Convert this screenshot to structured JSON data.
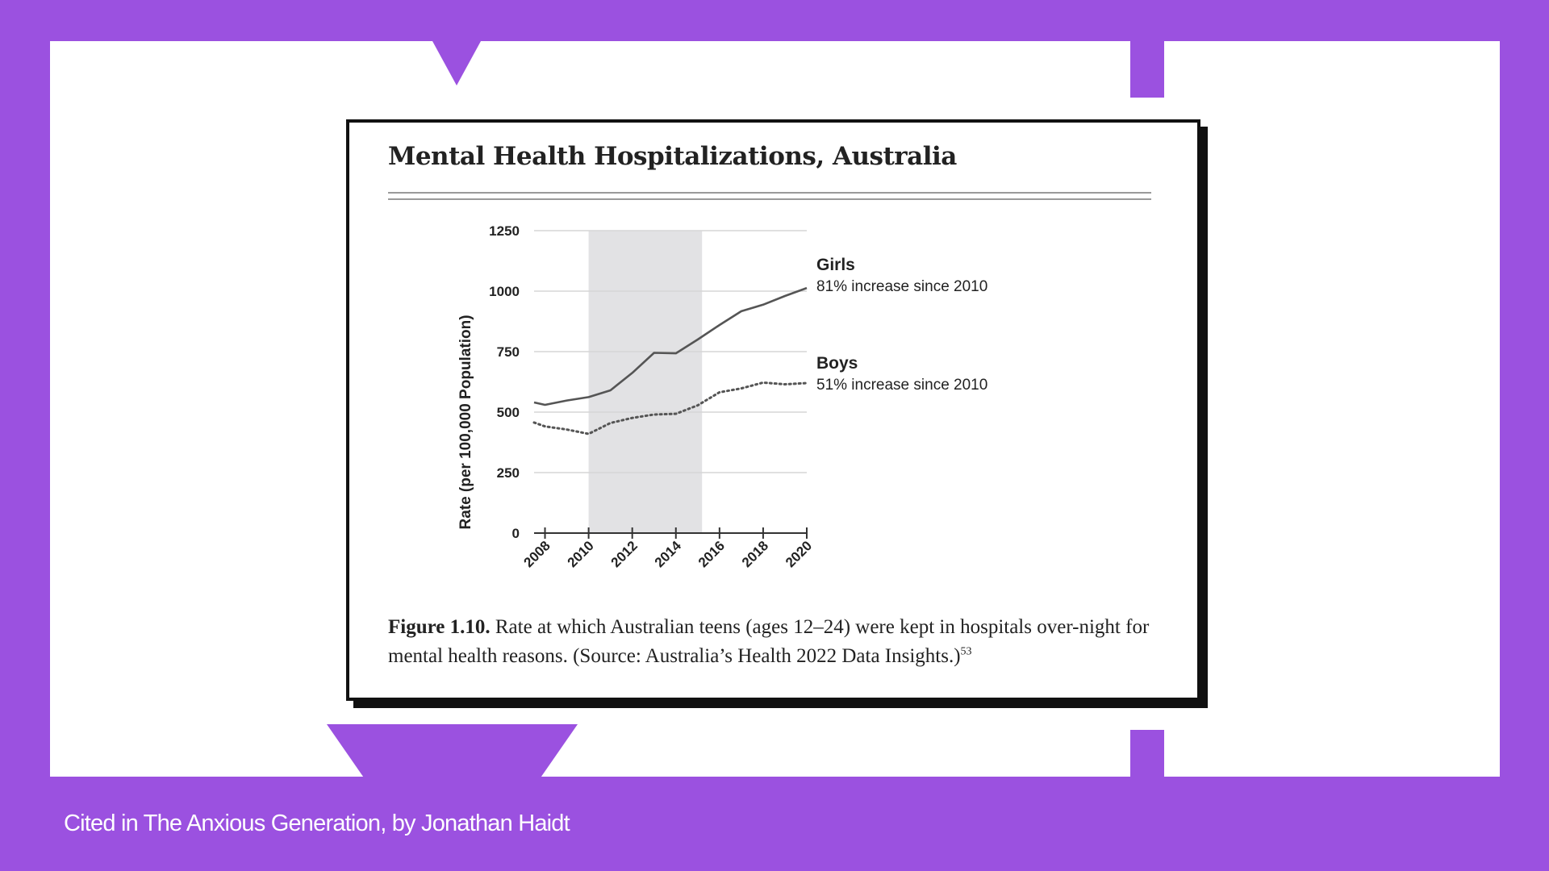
{
  "footer": {
    "citation": "Cited in The Anxious Generation, by Jonathan Haidt"
  },
  "card": {
    "title": "Mental Health Hospitalizations, Australia",
    "caption_label": "Figure 1.10.",
    "caption_text": " Rate at which Australian teens (ages 12–24) were kept in hospitals over-night for mental health reasons. (Source: Australia’s Health 2022 Data Insights.)",
    "caption_ref": "53"
  },
  "colors": {
    "background": "#9b51e0",
    "line": "#555555",
    "shade": "#e2e2e4"
  },
  "chart_data": {
    "type": "line",
    "title": "Mental Health Hospitalizations, Australia",
    "ylabel": "Rate (per 100,000 Population)",
    "xlabel": "",
    "x": [
      2007.5,
      2008,
      2009,
      2010,
      2011,
      2012,
      2013,
      2014,
      2015,
      2016,
      2017,
      2018,
      2019,
      2020
    ],
    "ylim": [
      0,
      1250
    ],
    "xlim": [
      2007.5,
      2020
    ],
    "yticks": [
      0,
      250,
      500,
      750,
      1000,
      1250
    ],
    "xticks": [
      2008,
      2010,
      2012,
      2014,
      2016,
      2018,
      2020
    ],
    "grid": true,
    "shaded_region": [
      2010,
      2015.2
    ],
    "series": [
      {
        "name": "Girls",
        "style": "solid",
        "annotation": "81% increase since 2010",
        "values": [
          540,
          530,
          548,
          562,
          590,
          662,
          745,
          743,
          800,
          860,
          917,
          944,
          980,
          1013
        ]
      },
      {
        "name": "Boys",
        "style": "dotted",
        "annotation": "51% increase since 2010",
        "values": [
          457,
          441,
          428,
          410,
          455,
          476,
          490,
          493,
          528,
          582,
          598,
          622,
          615,
          620
        ]
      }
    ]
  }
}
